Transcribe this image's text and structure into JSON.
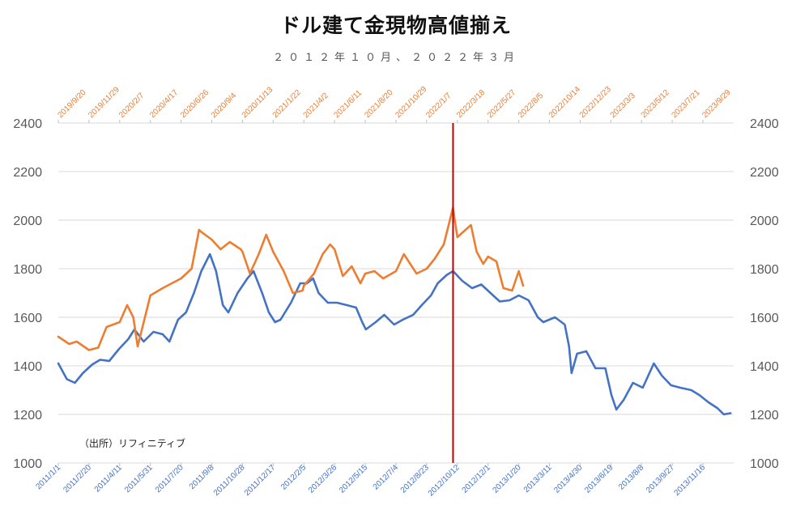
{
  "header": {
    "title": "ドル建て金現物高値揃え",
    "subtitle": "２０１２年１０月、２０２２年３月"
  },
  "source_note": "（出所）リフィニティブ",
  "colors": {
    "series_blue": "#4472C4",
    "series_orange": "#ED7D31",
    "marker_line": "#C00000",
    "grid": "#D9D9D9"
  },
  "chart_data": {
    "type": "line",
    "title": "ドル建て金現物高値揃え",
    "subtitle": "２０１２年１０月、２０２２年３月",
    "ylim": [
      1000,
      2400
    ],
    "y_ticks": [
      1000,
      1200,
      1400,
      1600,
      1800,
      2000,
      2200,
      2400
    ],
    "y_tick_labels_left": [
      "1000",
      "1200",
      "1400",
      "1600",
      "1800",
      "2000",
      "2200",
      "2400"
    ],
    "y_tick_labels_right": [
      "1000",
      "1200",
      "1400",
      "1600",
      "1800",
      "2000",
      "2200",
      "2400"
    ],
    "grid": true,
    "legend": "none",
    "bottom_axis_labels": [
      "2011/1/1",
      "2011/2/20",
      "2011/4/11",
      "2011/5/31",
      "2011/7/20",
      "2011/9/8",
      "2011/10/28",
      "2011/12/17",
      "2012/2/5",
      "2012/3/26",
      "2012/5/15",
      "2012/7/4",
      "2012/8/23",
      "2012/10/12",
      "2012/12/1",
      "2013/1/20",
      "2013/3/11",
      "2013/4/30",
      "2013/6/19",
      "2013/8/8",
      "2013/9/27",
      "2013/11/16"
    ],
    "top_axis_labels": [
      "2019/9/20",
      "2019/11/29",
      "2020/2/7",
      "2020/4/17",
      "2020/6/26",
      "2020/9/4",
      "2020/11/13",
      "2021/1/22",
      "2021/4/2",
      "2021/6/11",
      "2021/8/20",
      "2021/10/29",
      "2022/1/7",
      "2022/3/18",
      "2022/5/27",
      "2022/8/5",
      "2022/10/14",
      "2022/12/23",
      "2023/3/3",
      "2023/5/12",
      "2023/7/21",
      "2023/9/29"
    ],
    "marker": {
      "axis": "bottom",
      "date": "2012/10/5"
    },
    "series": [
      {
        "axis": "bottom",
        "x": [
          "2011/1/1",
          "2011/1/15",
          "2011/1/28",
          "2011/2/10",
          "2011/2/25",
          "2011/3/10",
          "2011/3/25",
          "2011/4/10",
          "2011/4/25",
          "2011/5/5",
          "2011/5/20",
          "2011/6/5",
          "2011/6/20",
          "2011/7/1",
          "2011/7/15",
          "2011/7/28",
          "2011/8/10",
          "2011/8/22",
          "2011/9/5",
          "2011/9/15",
          "2011/9/26",
          "2011/10/5",
          "2011/10/20",
          "2011/11/5",
          "2011/11/15",
          "2011/11/29",
          "2011/12/10",
          "2011/12/20",
          "2011/12/29",
          "2012/1/15",
          "2012/1/30",
          "2012/2/10",
          "2012/2/20",
          "2012/2/29",
          "2012/3/15",
          "2012/3/30",
          "2012/4/15",
          "2012/4/30",
          "2012/5/10",
          "2012/5/16",
          "2012/6/1",
          "2012/6/15",
          "2012/7/1",
          "2012/7/15",
          "2012/8/1",
          "2012/8/15",
          "2012/8/30",
          "2012/9/10",
          "2012/9/25",
          "2012/10/5",
          "2012/10/20",
          "2012/11/5",
          "2012/11/20",
          "2012/12/5",
          "2012/12/20",
          "2013/1/5",
          "2013/1/20",
          "2013/2/5",
          "2013/2/20",
          "2013/3/1",
          "2013/3/20",
          "2013/4/5",
          "2013/4/12",
          "2013/4/16",
          "2013/4/25",
          "2013/5/10",
          "2013/5/25",
          "2013/6/10",
          "2013/6/20",
          "2013/6/28",
          "2013/7/10",
          "2013/7/25",
          "2013/8/10",
          "2013/8/28",
          "2013/9/10",
          "2013/9/25",
          "2013/10/10",
          "2013/10/28",
          "2013/11/10",
          "2013/11/25",
          "2013/12/10",
          "2013/12/20",
          "2013/12/31"
        ],
        "values": [
          1410,
          1345,
          1330,
          1370,
          1405,
          1425,
          1420,
          1470,
          1510,
          1550,
          1500,
          1540,
          1530,
          1500,
          1590,
          1620,
          1700,
          1790,
          1860,
          1790,
          1650,
          1620,
          1700,
          1760,
          1790,
          1700,
          1620,
          1580,
          1590,
          1660,
          1740,
          1740,
          1760,
          1700,
          1660,
          1660,
          1650,
          1640,
          1580,
          1550,
          1580,
          1610,
          1570,
          1590,
          1610,
          1650,
          1690,
          1740,
          1775,
          1790,
          1750,
          1720,
          1735,
          1700,
          1665,
          1670,
          1690,
          1670,
          1600,
          1580,
          1600,
          1570,
          1480,
          1370,
          1450,
          1460,
          1390,
          1390,
          1280,
          1220,
          1260,
          1330,
          1310,
          1410,
          1360,
          1320,
          1310,
          1300,
          1280,
          1250,
          1225,
          1200,
          1205
        ]
      },
      {
        "axis": "top",
        "x": [
          "2019/9/20",
          "2019/10/15",
          "2019/11/1",
          "2019/11/29",
          "2019/12/20",
          "2020/1/8",
          "2020/2/7",
          "2020/2/24",
          "2020/3/9",
          "2020/3/19",
          "2020/4/17",
          "2020/5/15",
          "2020/6/26",
          "2020/7/20",
          "2020/8/6",
          "2020/8/12",
          "2020/9/4",
          "2020/9/24",
          "2020/10/15",
          "2020/11/9",
          "2020/11/13",
          "2020/11/30",
          "2020/12/20",
          "2021/1/6",
          "2021/1/22",
          "2021/2/15",
          "2021/3/8",
          "2021/3/30",
          "2021/4/2",
          "2021/4/25",
          "2021/5/15",
          "2021/6/1",
          "2021/6/11",
          "2021/6/30",
          "2021/7/20",
          "2021/8/9",
          "2021/8/20",
          "2021/9/10",
          "2021/9/30",
          "2021/10/29",
          "2021/11/16",
          "2021/12/15",
          "2022/1/7",
          "2022/1/25",
          "2022/2/15",
          "2022/3/8",
          "2022/3/18",
          "2022/4/18",
          "2022/5/1",
          "2022/5/16",
          "2022/5/27",
          "2022/6/15",
          "2022/7/1",
          "2022/7/21",
          "2022/8/5",
          "2022/8/15"
        ],
        "values": [
          1520,
          1490,
          1500,
          1465,
          1475,
          1560,
          1580,
          1650,
          1600,
          1480,
          1690,
          1720,
          1760,
          1800,
          1960,
          1950,
          1920,
          1880,
          1910,
          1880,
          1870,
          1780,
          1860,
          1940,
          1870,
          1790,
          1700,
          1710,
          1730,
          1780,
          1860,
          1900,
          1880,
          1770,
          1810,
          1740,
          1780,
          1790,
          1760,
          1790,
          1860,
          1780,
          1800,
          1840,
          1900,
          2050,
          1930,
          1980,
          1870,
          1820,
          1850,
          1830,
          1720,
          1710,
          1790,
          1730
        ]
      }
    ]
  }
}
